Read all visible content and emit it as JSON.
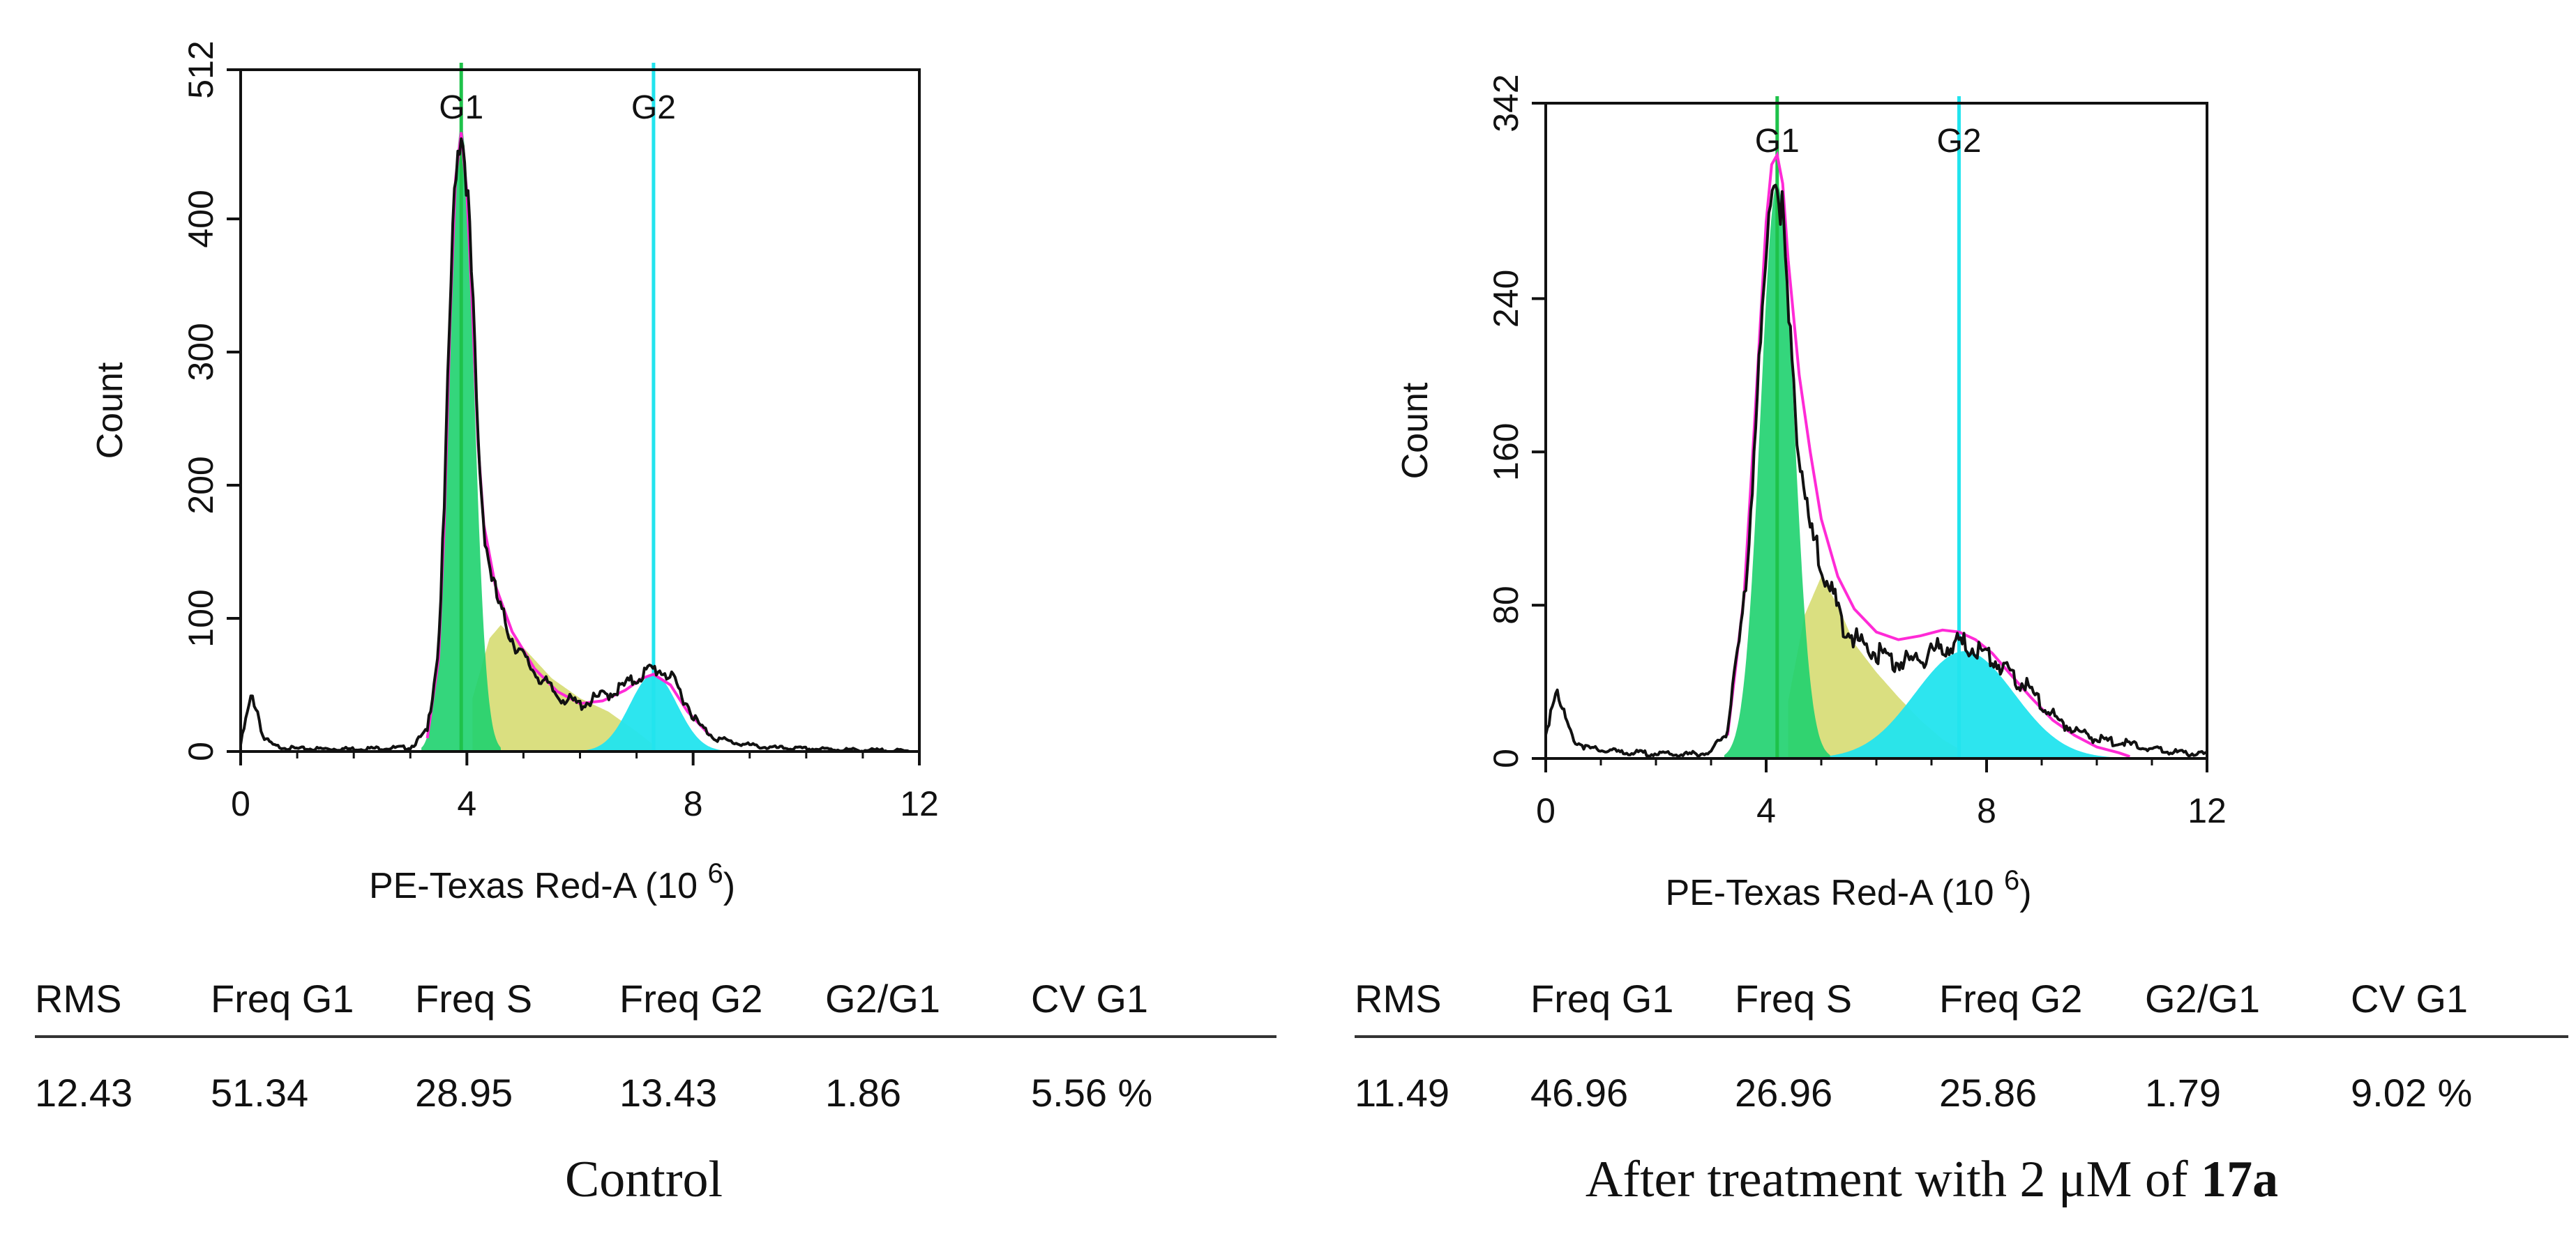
{
  "chart_data": [
    {
      "type": "histogram",
      "panel": "Control",
      "xlabel": "PE-Texas Red-A",
      "xunit_base": "(10",
      "xunit_exp": "6",
      "xunit_close": ")",
      "ylabel": "Count",
      "xlim": [
        0,
        12
      ],
      "ylim": [
        0,
        512
      ],
      "xticks": [
        "0",
        "4",
        "8",
        "12"
      ],
      "yticks": [
        "0",
        "100",
        "200",
        "300",
        "400",
        "512"
      ],
      "markers": [
        {
          "label": "G1",
          "x": 3.9
        },
        {
          "label": "G2",
          "x": 7.3
        }
      ],
      "series": [
        {
          "name": "Measured histogram",
          "color": "#111111",
          "x": [
            0,
            0.1,
            0.2,
            0.3,
            0.4,
            0.6,
            1.0,
            2.0,
            3.0,
            3.3,
            3.5,
            3.6,
            3.7,
            3.8,
            3.9,
            4.0,
            4.1,
            4.2,
            4.3,
            4.4,
            4.5,
            4.6,
            4.8,
            5.0,
            5.3,
            5.6,
            6.0,
            6.3,
            6.6,
            6.9,
            7.1,
            7.3,
            7.5,
            7.7,
            7.9,
            8.1,
            8.4,
            8.8,
            9.3,
            10.0,
            11.0,
            12.0
          ],
          "y": [
            5,
            25,
            42,
            30,
            10,
            4,
            2,
            2,
            3,
            15,
            80,
            180,
            330,
            440,
            470,
            430,
            340,
            230,
            170,
            140,
            120,
            105,
            85,
            70,
            55,
            42,
            35,
            40,
            45,
            52,
            58,
            62,
            60,
            50,
            35,
            20,
            10,
            6,
            3,
            2,
            1,
            0
          ]
        },
        {
          "name": "G1 fit",
          "color": "#1ed26e",
          "center": 3.9,
          "peak": 470,
          "sd": 0.22
        },
        {
          "name": "S fit",
          "color": "#d4d96a",
          "x": [
            4.1,
            4.4,
            4.6,
            5.0,
            5.5,
            6.0,
            6.5,
            7.0,
            7.3
          ],
          "y": [
            40,
            85,
            95,
            78,
            55,
            40,
            30,
            15,
            5
          ]
        },
        {
          "name": "G2 fit",
          "color": "#22e4ee",
          "center": 7.3,
          "peak": 58,
          "sd": 0.42
        },
        {
          "name": "Model fit",
          "color": "#ff2ad6",
          "x": [
            3.3,
            3.5,
            3.6,
            3.7,
            3.8,
            3.9,
            4.0,
            4.1,
            4.2,
            4.3,
            4.5,
            4.8,
            5.2,
            5.6,
            6.0,
            6.4,
            6.8,
            7.1,
            7.3,
            7.6,
            7.9,
            8.3
          ],
          "y": [
            10,
            70,
            170,
            320,
            430,
            465,
            420,
            330,
            230,
            170,
            125,
            90,
            62,
            45,
            36,
            38,
            46,
            55,
            58,
            50,
            30,
            12
          ]
        }
      ],
      "stats": {
        "headers": [
          "RMS",
          "Freq G1",
          "Freq S",
          "Freq G2",
          "G2/G1",
          "CV G1"
        ],
        "values": [
          "12.43",
          "51.34",
          "28.95",
          "13.43",
          "1.86",
          "5.56 %"
        ]
      },
      "caption": "Control",
      "caption_bold": ""
    },
    {
      "type": "histogram",
      "panel": "After treatment",
      "xlabel": "PE-Texas Red-A",
      "xunit_base": "(10",
      "xunit_exp": "6",
      "xunit_close": ")",
      "ylabel": "Count",
      "xlim": [
        0,
        12
      ],
      "ylim": [
        0,
        342
      ],
      "xticks": [
        "0",
        "4",
        "8",
        "12"
      ],
      "yticks": [
        "0",
        "80",
        "160",
        "240",
        "342"
      ],
      "markers": [
        {
          "label": "G1",
          "x": 4.2
        },
        {
          "label": "G2",
          "x": 7.5
        }
      ],
      "series": [
        {
          "name": "Measured histogram",
          "color": "#111111",
          "x": [
            0,
            0.1,
            0.2,
            0.3,
            0.5,
            0.8,
            1.5,
            2.5,
            3.0,
            3.3,
            3.6,
            3.8,
            4.0,
            4.1,
            4.2,
            4.3,
            4.4,
            4.6,
            4.8,
            5.0,
            5.2,
            5.4,
            5.7,
            6.0,
            6.4,
            6.8,
            7.2,
            7.5,
            7.8,
            8.1,
            8.4,
            8.7,
            9.0,
            9.3,
            9.6,
            10.0,
            10.5,
            11.0,
            11.5,
            12.0
          ],
          "y": [
            10,
            28,
            40,
            25,
            10,
            5,
            3,
            2,
            3,
            15,
            80,
            170,
            260,
            300,
            305,
            280,
            230,
            160,
            120,
            100,
            85,
            70,
            60,
            55,
            50,
            52,
            58,
            60,
            58,
            52,
            45,
            38,
            28,
            20,
            15,
            10,
            8,
            5,
            3,
            2
          ]
        },
        {
          "name": "G1 fit",
          "color": "#1ed26e",
          "center": 4.2,
          "peak": 300,
          "sd": 0.3
        },
        {
          "name": "S fit",
          "color": "#d4d96a",
          "x": [
            4.4,
            4.7,
            5.0,
            5.3,
            5.6,
            6.0,
            6.4,
            6.8,
            7.2,
            7.5
          ],
          "y": [
            30,
            75,
            95,
            80,
            60,
            45,
            32,
            20,
            10,
            5
          ]
        },
        {
          "name": "G2 fit",
          "color": "#22e4ee",
          "center": 7.6,
          "peak": 56,
          "sd": 0.9
        },
        {
          "name": "Model fit",
          "color": "#ff2ad6",
          "x": [
            3.3,
            3.6,
            3.8,
            4.0,
            4.1,
            4.2,
            4.3,
            4.4,
            4.6,
            4.8,
            5.0,
            5.3,
            5.6,
            6.0,
            6.4,
            6.8,
            7.2,
            7.5,
            7.8,
            8.1,
            8.4,
            8.8,
            9.2,
            9.6,
            10.0,
            10.4,
            10.6
          ],
          "y": [
            12,
            85,
            180,
            280,
            310,
            315,
            300,
            260,
            200,
            160,
            125,
            95,
            78,
            66,
            62,
            64,
            67,
            66,
            62,
            55,
            45,
            32,
            20,
            12,
            6,
            3,
            1
          ]
        }
      ],
      "stats": {
        "headers": [
          "RMS",
          "Freq G1",
          "Freq S",
          "Freq G2",
          "G2/G1",
          "CV G1"
        ],
        "values": [
          "11.49",
          "46.96",
          "26.96",
          "25.86",
          "1.79",
          "9.02 %"
        ]
      },
      "caption": "After treatment with 2 μM of ",
      "caption_bold": "17a"
    }
  ]
}
